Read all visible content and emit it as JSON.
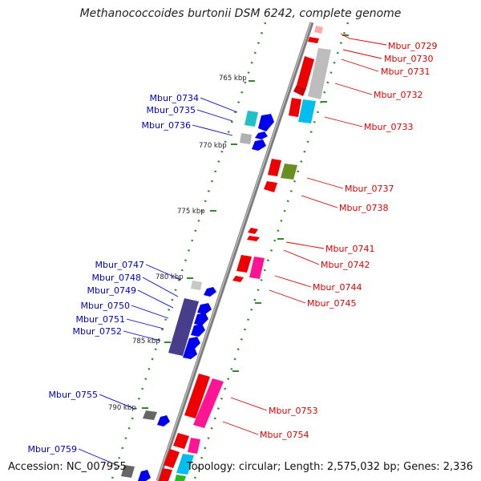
{
  "title": "Methanococcoides burtonii DSM 6242, complete genome",
  "footer": {
    "accession": "Accession: NC_007955",
    "topology": "Topology: circular; Length: 2,575,032 bp; Genes: 2,336"
  },
  "colors": {
    "backbone": "#8a8a8a",
    "tick_dot": "#2e8b2e",
    "forward_label": "#dd0000",
    "reverse_label": "#0000cc"
  },
  "ticks": [
    "765 kbp",
    "770 kbp",
    "775 kbp",
    "780 kbp",
    "785 kbp",
    "790 kbp"
  ],
  "forward_genes": [
    "Mbur_0729",
    "Mbur_0730",
    "Mbur_0731",
    "Mbur_0732",
    "Mbur_0733",
    "Mbur_0737",
    "Mbur_0738",
    "Mbur_0741",
    "Mbur_0742",
    "Mbur_0744",
    "Mbur_0745",
    "Mbur_0753",
    "Mbur_0754"
  ],
  "reverse_genes": [
    "Mbur_0734",
    "Mbur_0735",
    "Mbur_0736",
    "Mbur_0747",
    "Mbur_0748",
    "Mbur_0749",
    "Mbur_0750",
    "Mbur_0751",
    "Mbur_0752",
    "Mbur_0755",
    "Mbur_0759"
  ]
}
